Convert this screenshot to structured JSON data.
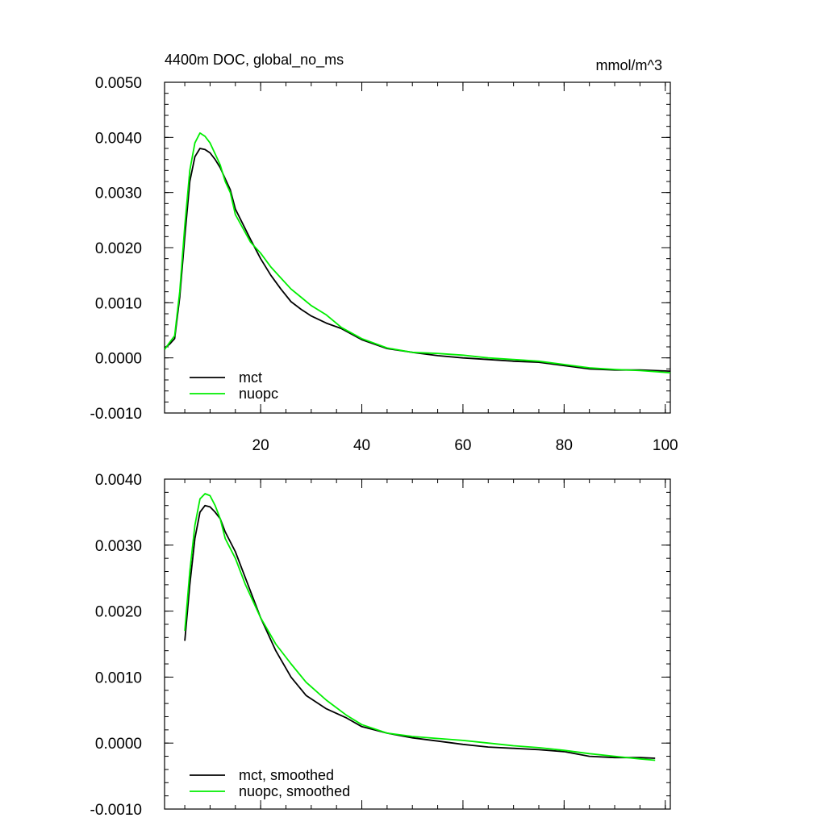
{
  "chart_data": [
    {
      "type": "line",
      "title": "4400m DOC, global_no_ms",
      "units": "mmol/m^3",
      "xlim": [
        1,
        101
      ],
      "ylim": [
        -0.001,
        0.005
      ],
      "xticks": [
        20,
        40,
        60,
        80,
        100
      ],
      "xtick_labels": [
        "20",
        "40",
        "60",
        "80",
        "100"
      ],
      "yticks": [
        -0.001,
        0.0,
        0.001,
        0.002,
        0.003,
        0.004,
        0.005
      ],
      "ytick_labels": [
        "-0.0010",
        "0.0000",
        "0.0010",
        "0.0020",
        "0.0030",
        "0.0040",
        "0.0050"
      ],
      "grid": false,
      "legend_position": "bottom-left",
      "series": [
        {
          "name": "mct",
          "color": "#000000",
          "points": [
            [
              1,
              0.00018
            ],
            [
              2,
              0.00025
            ],
            [
              3,
              0.00035
            ],
            [
              4,
              0.0011
            ],
            [
              5,
              0.0022
            ],
            [
              6,
              0.0032
            ],
            [
              7,
              0.00365
            ],
            [
              8,
              0.0038
            ],
            [
              9,
              0.00378
            ],
            [
              10,
              0.00372
            ],
            [
              11,
              0.0036
            ],
            [
              12,
              0.00345
            ],
            [
              13,
              0.00325
            ],
            [
              14,
              0.00305
            ],
            [
              15,
              0.0027
            ],
            [
              18,
              0.00215
            ],
            [
              20,
              0.0018
            ],
            [
              22,
              0.0015
            ],
            [
              24,
              0.00125
            ],
            [
              26,
              0.00102
            ],
            [
              28,
              0.00088
            ],
            [
              30,
              0.00076
            ],
            [
              33,
              0.00063
            ],
            [
              36,
              0.00053
            ],
            [
              40,
              0.00033
            ],
            [
              45,
              0.00017
            ],
            [
              50,
              0.0001
            ],
            [
              55,
              4e-05
            ],
            [
              60,
              0.0
            ],
            [
              65,
              -3e-05
            ],
            [
              70,
              -6e-05
            ],
            [
              75,
              -8e-05
            ],
            [
              80,
              -0.00014
            ],
            [
              85,
              -0.0002
            ],
            [
              90,
              -0.00022
            ],
            [
              95,
              -0.00022
            ],
            [
              101,
              -0.00024
            ]
          ]
        },
        {
          "name": "nuopc",
          "color": "#00ee00",
          "points": [
            [
              1,
              0.00015
            ],
            [
              2,
              0.00028
            ],
            [
              3,
              0.0004
            ],
            [
              4,
              0.0012
            ],
            [
              5,
              0.0024
            ],
            [
              6,
              0.0034
            ],
            [
              7,
              0.0039
            ],
            [
              8,
              0.00408
            ],
            [
              9,
              0.00402
            ],
            [
              10,
              0.0039
            ],
            [
              11,
              0.0037
            ],
            [
              12,
              0.0035
            ],
            [
              13,
              0.0032
            ],
            [
              14,
              0.003
            ],
            [
              15,
              0.0026
            ],
            [
              18,
              0.0021
            ],
            [
              20,
              0.0019
            ],
            [
              22,
              0.00165
            ],
            [
              24,
              0.00145
            ],
            [
              26,
              0.00125
            ],
            [
              28,
              0.0011
            ],
            [
              30,
              0.00095
            ],
            [
              33,
              0.00078
            ],
            [
              36,
              0.00055
            ],
            [
              40,
              0.00035
            ],
            [
              45,
              0.00018
            ],
            [
              50,
              0.0001
            ],
            [
              55,
              8e-05
            ],
            [
              60,
              5e-05
            ],
            [
              65,
              0.0
            ],
            [
              70,
              -3e-05
            ],
            [
              75,
              -6e-05
            ],
            [
              80,
              -0.00012
            ],
            [
              85,
              -0.00018
            ],
            [
              90,
              -0.00021
            ],
            [
              95,
              -0.00023
            ],
            [
              101,
              -0.00027
            ]
          ]
        }
      ]
    },
    {
      "type": "line",
      "xlim": [
        1,
        101
      ],
      "ylim": [
        -0.001,
        0.004
      ],
      "xticks": [
        20,
        40,
        60,
        80,
        100
      ],
      "xtick_labels": [],
      "yticks": [
        -0.001,
        0.0,
        0.001,
        0.002,
        0.003,
        0.004
      ],
      "ytick_labels": [
        "-0.0010",
        "0.0000",
        "0.0010",
        "0.0020",
        "0.0030",
        "0.0040"
      ],
      "grid": false,
      "legend_position": "bottom-left",
      "series": [
        {
          "name": "mct, smoothed",
          "color": "#000000",
          "points": [
            [
              5,
              0.00155
            ],
            [
              6,
              0.0024
            ],
            [
              7,
              0.0031
            ],
            [
              8,
              0.0035
            ],
            [
              9,
              0.0036
            ],
            [
              10,
              0.00358
            ],
            [
              11,
              0.0035
            ],
            [
              12,
              0.0034
            ],
            [
              13,
              0.0032
            ],
            [
              15,
              0.0029
            ],
            [
              17,
              0.0025
            ],
            [
              20,
              0.0019
            ],
            [
              23,
              0.0014
            ],
            [
              26,
              0.001
            ],
            [
              29,
              0.00072
            ],
            [
              33,
              0.00052
            ],
            [
              37,
              0.00038
            ],
            [
              40,
              0.00025
            ],
            [
              45,
              0.00015
            ],
            [
              50,
              8e-05
            ],
            [
              55,
              3e-05
            ],
            [
              60,
              -2e-05
            ],
            [
              65,
              -6e-05
            ],
            [
              70,
              -8e-05
            ],
            [
              75,
              -0.0001
            ],
            [
              80,
              -0.00013
            ],
            [
              85,
              -0.0002
            ],
            [
              90,
              -0.00022
            ],
            [
              95,
              -0.00022
            ],
            [
              98,
              -0.00023
            ]
          ]
        },
        {
          "name": "nuopc, smoothed",
          "color": "#00ee00",
          "points": [
            [
              5,
              0.0017
            ],
            [
              6,
              0.0026
            ],
            [
              7,
              0.0033
            ],
            [
              8,
              0.0037
            ],
            [
              9,
              0.00378
            ],
            [
              10,
              0.00375
            ],
            [
              11,
              0.0036
            ],
            [
              12,
              0.0034
            ],
            [
              13,
              0.0031
            ],
            [
              15,
              0.0028
            ],
            [
              17,
              0.0024
            ],
            [
              20,
              0.0019
            ],
            [
              23,
              0.0015
            ],
            [
              26,
              0.0012
            ],
            [
              29,
              0.00092
            ],
            [
              33,
              0.00065
            ],
            [
              37,
              0.00042
            ],
            [
              40,
              0.00028
            ],
            [
              45,
              0.00015
            ],
            [
              50,
              0.0001
            ],
            [
              55,
              7e-05
            ],
            [
              60,
              4e-05
            ],
            [
              65,
              0.0
            ],
            [
              70,
              -4e-05
            ],
            [
              75,
              -7e-05
            ],
            [
              80,
              -0.00011
            ],
            [
              85,
              -0.00016
            ],
            [
              90,
              -0.0002
            ],
            [
              95,
              -0.00024
            ],
            [
              98,
              -0.00026
            ]
          ]
        }
      ]
    }
  ]
}
